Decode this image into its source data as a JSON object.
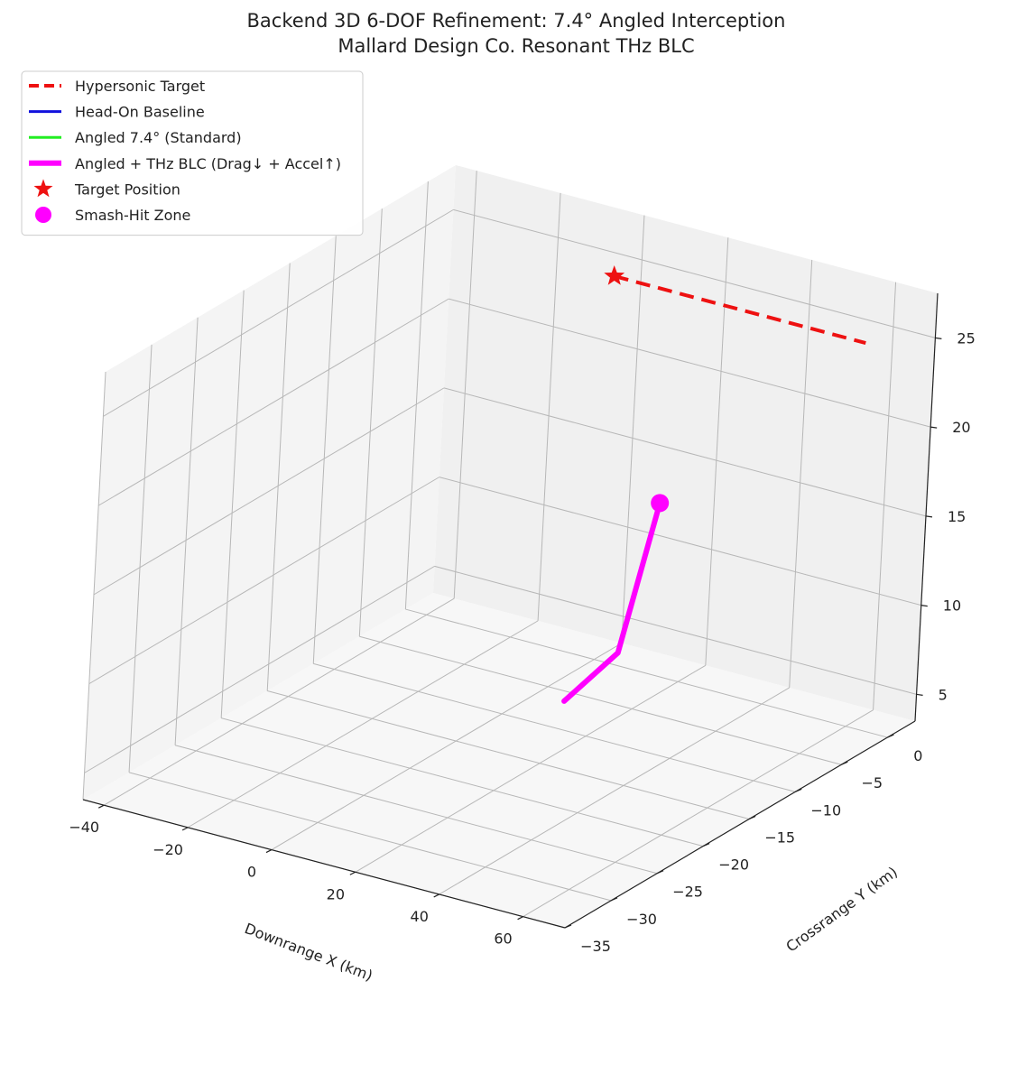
{
  "chart_data": {
    "type": "line",
    "projection": "3d",
    "title": "Backend 3D 6-DOF Refinement: 7.4° Angled Interception",
    "subtitle": "Mallard Design Co. Resonant THz BLC",
    "xlabel": "Downrange X (km)",
    "ylabel": "Crossrange Y (km)",
    "zlabel": "",
    "xlim": [
      -45,
      70
    ],
    "ylim": [
      -35,
      3
    ],
    "zlim": [
      3.5,
      27.5
    ],
    "xticks": [
      -40,
      -20,
      0,
      20,
      40,
      60
    ],
    "yticks": [
      0,
      -5,
      -10,
      -15,
      -20,
      -25,
      -30,
      -35
    ],
    "zticks": [
      5,
      10,
      15,
      20,
      25
    ],
    "xtick_labels": [
      "−40",
      "−20",
      "0",
      "20",
      "40",
      "60"
    ],
    "ytick_labels": [
      "0",
      "−5",
      "−10",
      "−15",
      "−20",
      "−25",
      "−30",
      "−35"
    ],
    "ztick_labels": [
      "5",
      "10",
      "15",
      "20",
      "25"
    ],
    "grid": true,
    "legend_position": "top-left",
    "series": [
      {
        "name": "Hypersonic Target",
        "color": "#ee1111",
        "style": "dashed",
        "x": [
          0,
          60
        ],
        "y": [
          0,
          0
        ],
        "z": [
          25,
          25
        ]
      },
      {
        "name": "Head-On Baseline",
        "color": "#1111dd",
        "style": "solid",
        "x": [],
        "y": [],
        "z": []
      },
      {
        "name": "Angled 7.4° (Standard)",
        "color": "#22ee22",
        "style": "solid",
        "x": [],
        "y": [],
        "z": []
      },
      {
        "name": "Angled + THz BLC (Drag↓ + Accel↑)",
        "color": "#ff00ff",
        "style": "solid-thick",
        "x": [
          27.4,
          40.6,
          38.0
        ],
        "y": [
          -6.6,
          -16.7,
          -21.2
        ],
        "z": [
          16.0,
          11.5,
          10.0
        ]
      },
      {
        "name": "Target Position",
        "color": "#ee1111",
        "marker": "star",
        "x": [
          0
        ],
        "y": [
          0
        ],
        "z": [
          25
        ]
      },
      {
        "name": "Smash-Hit Zone",
        "color": "#ff00ff",
        "marker": "circle",
        "x": [
          27.4
        ],
        "y": [
          -6.6
        ],
        "z": [
          16.0
        ]
      }
    ]
  }
}
